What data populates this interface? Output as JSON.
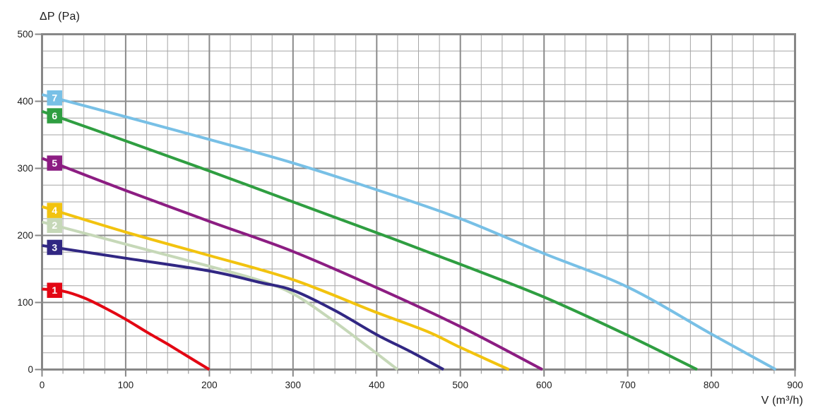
{
  "chart_data": {
    "type": "line",
    "title": "",
    "xlabel": "V (m³/h)",
    "ylabel": "ΔP (Pa)",
    "x_range": [
      0,
      900
    ],
    "y_range": [
      0,
      500
    ],
    "x_major_step": 100,
    "x_minor_step": 25,
    "y_major_step": 100,
    "y_minor_step": 25,
    "grid": "on",
    "x_tick_labels": [
      "0",
      "100",
      "200",
      "300",
      "400",
      "500",
      "600",
      "700",
      "800",
      "900"
    ],
    "y_tick_labels": [
      "0",
      "100",
      "200",
      "300",
      "400",
      "500"
    ],
    "colors": {
      "minor_grid": "#a6a6a6",
      "major_grid": "#8b8b8b",
      "border_axis": "#878787",
      "tick_text": "#1c1c1c",
      "badge_text": "#ffffff"
    },
    "series": [
      {
        "id": "1",
        "badge": "1",
        "color": "#e30613",
        "points": [
          [
            0,
            120
          ],
          [
            25,
            117
          ],
          [
            50,
            107
          ],
          [
            75,
            92
          ],
          [
            100,
            75
          ],
          [
            125,
            56
          ],
          [
            150,
            38
          ],
          [
            175,
            19
          ],
          [
            200,
            0
          ]
        ]
      },
      {
        "id": "2",
        "badge": "2",
        "color": "#c6d8b8",
        "points": [
          [
            0,
            220
          ],
          [
            100,
            187
          ],
          [
            200,
            154
          ],
          [
            260,
            133
          ],
          [
            300,
            113
          ],
          [
            340,
            80
          ],
          [
            380,
            43
          ],
          [
            425,
            0
          ]
        ]
      },
      {
        "id": "3",
        "badge": "3",
        "color": "#312783",
        "points": [
          [
            0,
            185
          ],
          [
            100,
            166
          ],
          [
            200,
            147
          ],
          [
            260,
            130
          ],
          [
            300,
            118
          ],
          [
            350,
            88
          ],
          [
            400,
            52
          ],
          [
            440,
            27
          ],
          [
            480,
            0
          ]
        ]
      },
      {
        "id": "4",
        "badge": "4",
        "color": "#f2c30f",
        "points": [
          [
            0,
            243
          ],
          [
            100,
            205
          ],
          [
            200,
            170
          ],
          [
            300,
            134
          ],
          [
            400,
            85
          ],
          [
            460,
            57
          ],
          [
            500,
            33
          ],
          [
            558,
            0
          ]
        ]
      },
      {
        "id": "5",
        "badge": "5",
        "color": "#8c1d82",
        "points": [
          [
            0,
            315
          ],
          [
            100,
            267
          ],
          [
            200,
            221
          ],
          [
            300,
            176
          ],
          [
            400,
            122
          ],
          [
            500,
            64
          ],
          [
            598,
            0
          ]
        ]
      },
      {
        "id": "6",
        "badge": "6",
        "color": "#2f9e41",
        "points": [
          [
            0,
            385
          ],
          [
            100,
            341
          ],
          [
            200,
            296
          ],
          [
            300,
            250
          ],
          [
            400,
            204
          ],
          [
            500,
            157
          ],
          [
            600,
            108
          ],
          [
            700,
            51
          ],
          [
            783,
            0
          ]
        ]
      },
      {
        "id": "7",
        "badge": "7",
        "color": "#78c0e6",
        "points": [
          [
            0,
            410
          ],
          [
            100,
            377
          ],
          [
            200,
            343
          ],
          [
            300,
            308
          ],
          [
            400,
            268
          ],
          [
            500,
            225
          ],
          [
            600,
            173
          ],
          [
            700,
            123
          ],
          [
            800,
            53
          ],
          [
            877,
            0
          ]
        ]
      }
    ],
    "render_order": [
      "2",
      "1",
      "3",
      "4",
      "5",
      "6",
      "7"
    ],
    "badge_x_value": 15
  }
}
